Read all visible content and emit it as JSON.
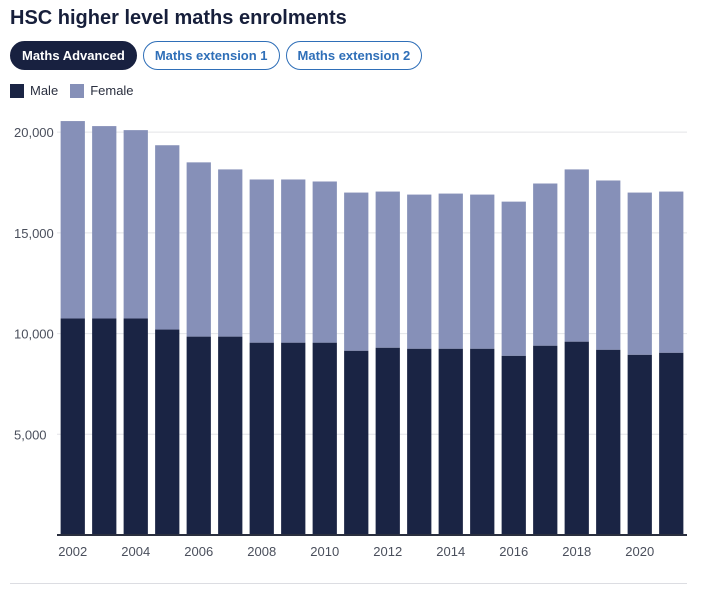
{
  "title": "HSC higher level maths enrolments",
  "tabs": [
    {
      "label": "Maths Advanced",
      "active": true
    },
    {
      "label": "Maths extension 1",
      "active": false
    },
    {
      "label": "Maths extension 2",
      "active": false
    }
  ],
  "colors": {
    "male": "#1a2444",
    "female": "#8690b8",
    "accent": "#2f6fb8"
  },
  "chart_data": {
    "type": "bar",
    "stacked": true,
    "categories": [
      "2002",
      "2003",
      "2004",
      "2005",
      "2006",
      "2007",
      "2008",
      "2009",
      "2010",
      "2011",
      "2012",
      "2013",
      "2014",
      "2015",
      "2016",
      "2017",
      "2018",
      "2019",
      "2020",
      "2021"
    ],
    "x_tick_labels": [
      "2002",
      "2004",
      "2006",
      "2008",
      "2010",
      "2012",
      "2014",
      "2016",
      "2018",
      "2020"
    ],
    "series": [
      {
        "name": "Male",
        "color": "#1a2444",
        "values": [
          10750,
          10750,
          10750,
          10200,
          9850,
          9850,
          9550,
          9550,
          9550,
          9150,
          9300,
          9250,
          9250,
          9250,
          8900,
          9400,
          9600,
          9200,
          8950,
          9050
        ]
      },
      {
        "name": "Female",
        "color": "#8690b8",
        "values": [
          9800,
          9550,
          9350,
          9150,
          8650,
          8300,
          8100,
          8100,
          8000,
          7850,
          7750,
          7650,
          7700,
          7650,
          7650,
          8050,
          8550,
          8400,
          8050,
          8000
        ]
      }
    ],
    "yticks": [
      5000,
      10000,
      15000,
      20000
    ],
    "ytick_labels": [
      "5,000",
      "10,000",
      "15,000",
      "20,000"
    ],
    "ylim": [
      0,
      21000
    ],
    "grid": true,
    "legend_position": "top-left"
  }
}
